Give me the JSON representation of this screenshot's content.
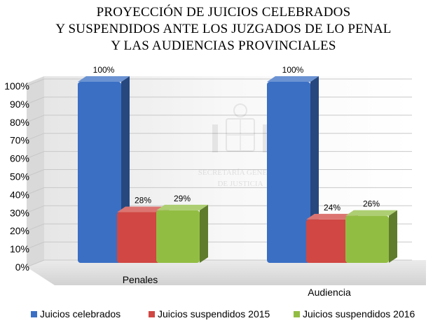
{
  "chart_data": {
    "type": "bar",
    "title_lines": [
      "PROYECCIÓN DE JUICIOS CELEBRADOS",
      "Y SUSPENDIDOS ANTE LOS JUZGADOS DE LO PENAL",
      "Y LAS AUDIENCIAS PROVINCIALES"
    ],
    "categories": [
      "Penales",
      "Audiencia"
    ],
    "series": [
      {
        "name": "Juicios celebrados",
        "values": [
          100,
          100
        ],
        "labels": [
          "100%",
          "100%"
        ],
        "color": "#3a6fc4"
      },
      {
        "name": "Juicios suspendidos 2015",
        "values": [
          28,
          24
        ],
        "labels": [
          "28%",
          "24%"
        ],
        "color": "#d04743"
      },
      {
        "name": "Juicios suspendidos 2016",
        "values": [
          29,
          26
        ],
        "labels": [
          "29%",
          "26%"
        ],
        "color": "#92bd43"
      }
    ],
    "y_ticks": [
      "0%",
      "10%",
      "20%",
      "30%",
      "40%",
      "50%",
      "60%",
      "70%",
      "80%",
      "90%",
      "100%"
    ],
    "ylim": [
      0,
      100
    ],
    "legend_position": "bottom",
    "watermark_text": [
      "SECRETARÍA GENERAL",
      "DE JUSTICIA"
    ]
  }
}
